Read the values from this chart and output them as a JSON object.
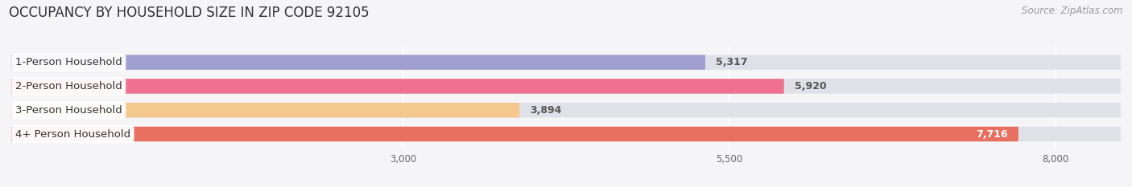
{
  "title": "OCCUPANCY BY HOUSEHOLD SIZE IN ZIP CODE 92105",
  "source": "Source: ZipAtlas.com",
  "categories": [
    "1-Person Household",
    "2-Person Household",
    "3-Person Household",
    "4+ Person Household"
  ],
  "values": [
    5317,
    5920,
    3894,
    7716
  ],
  "bar_colors": [
    "#a0a0d0",
    "#f07090",
    "#f5c890",
    "#e87060"
  ],
  "bar_bg_color": "#e0e0e8",
  "xlim_data": [
    0,
    8500
  ],
  "xlim_display": [
    0,
    8500
  ],
  "xticks": [
    3000,
    5500,
    8000
  ],
  "title_fontsize": 12,
  "label_fontsize": 9.5,
  "value_fontsize": 9,
  "source_fontsize": 8.5,
  "bar_height": 0.62,
  "background_color": "#f5f5f7"
}
